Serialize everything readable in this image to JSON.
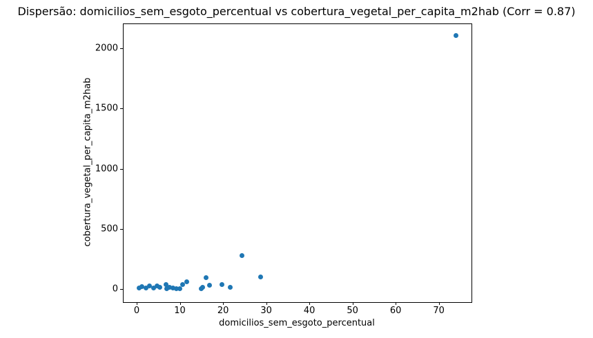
{
  "chart_data": {
    "type": "scatter",
    "title": "Dispersão: domicilios_sem_esgoto_percentual vs cobertura_vegetal_per_capita_m2hab (Corr = 0.87)",
    "xlabel": "domicilios_sem_esgoto_percentual",
    "ylabel": "cobertura_vegetal_per_capita_m2hab",
    "correlation": 0.87,
    "marker_color": "#1f77b4",
    "grid": false,
    "legend": "none",
    "xlim": [
      -3.2,
      77.4
    ],
    "ylim": [
      -103,
      2206
    ],
    "xticks": [
      0,
      10,
      20,
      30,
      40,
      50,
      60,
      70
    ],
    "yticks": [
      0,
      500,
      1000,
      1500,
      2000
    ],
    "points": [
      [
        0.5,
        8
      ],
      [
        1.2,
        20
      ],
      [
        2.2,
        10
      ],
      [
        3.0,
        28
      ],
      [
        3.9,
        10
      ],
      [
        4.7,
        24
      ],
      [
        5.3,
        12
      ],
      [
        6.8,
        40
      ],
      [
        6.9,
        6
      ],
      [
        7.6,
        14
      ],
      [
        8.4,
        10
      ],
      [
        9.2,
        2
      ],
      [
        10.0,
        6
      ],
      [
        10.6,
        35
      ],
      [
        11.6,
        60
      ],
      [
        14.9,
        2
      ],
      [
        15.3,
        16
      ],
      [
        16.0,
        95
      ],
      [
        16.8,
        30
      ],
      [
        19.8,
        35
      ],
      [
        21.7,
        15
      ],
      [
        24.4,
        280
      ],
      [
        28.7,
        98
      ],
      [
        74.0,
        2105
      ]
    ]
  }
}
